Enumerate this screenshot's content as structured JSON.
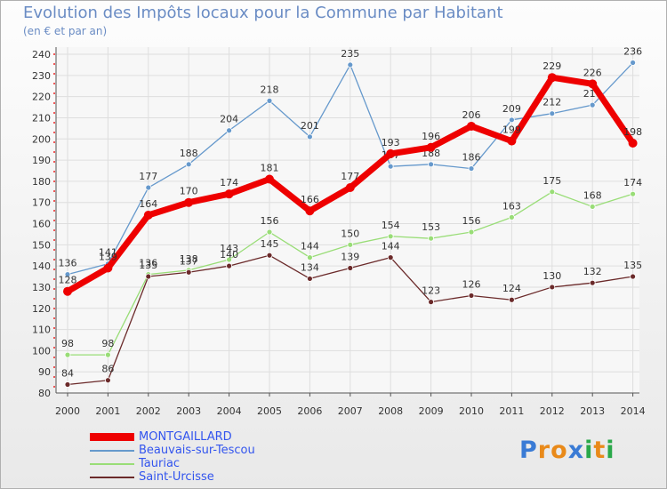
{
  "chart_data": {
    "type": "line",
    "title": "Evolution des Impôts locaux pour la Commune par Habitant",
    "subtitle": "(en € et par an)",
    "categories": [
      "2000",
      "2001",
      "2002",
      "2003",
      "2004",
      "2005",
      "2006",
      "2007",
      "2008",
      "2009",
      "2010",
      "2011",
      "2012",
      "2013",
      "2014"
    ],
    "ylim": [
      80,
      240
    ],
    "yticks": [
      80,
      90,
      100,
      110,
      120,
      130,
      140,
      150,
      160,
      170,
      180,
      190,
      200,
      210,
      220,
      230,
      240
    ],
    "grid": true,
    "series": [
      {
        "name": "Beauvais-sur-Tescou",
        "color": "#6699cc",
        "values": [
          136,
          141,
          177,
          188,
          204,
          218,
          201,
          235,
          187,
          188,
          186,
          209,
          212,
          216,
          236
        ]
      },
      {
        "name": "Tauriac",
        "color": "#99dd77",
        "values": [
          98,
          98,
          136,
          138,
          143,
          156,
          144,
          150,
          154,
          153,
          156,
          163,
          175,
          168,
          174
        ]
      },
      {
        "name": "Saint-Urcisse",
        "color": "#6b2a2a",
        "values": [
          84,
          86,
          135,
          137,
          140,
          145,
          134,
          139,
          144,
          123,
          126,
          124,
          130,
          132,
          135
        ]
      },
      {
        "name": "MONTGAILLARD",
        "color": "#ee0000",
        "values": [
          128,
          139,
          164,
          170,
          174,
          181,
          166,
          177,
          193,
          196,
          206,
          199,
          229,
          226,
          198
        ]
      }
    ],
    "legend": [
      {
        "name": "MONTGAILLARD",
        "color": "#ee0000",
        "text_color": "#3355ee"
      },
      {
        "name": "Beauvais-sur-Tescou",
        "color": "#6699cc",
        "text_color": "#3355ee"
      },
      {
        "name": "Tauriac",
        "color": "#99dd77",
        "text_color": "#3355ee"
      },
      {
        "name": "Saint-Urcisse",
        "color": "#6b2a2a",
        "text_color": "#3355ee"
      }
    ]
  },
  "logo": {
    "letters": [
      "P",
      "r",
      "o",
      "x",
      "i",
      "t",
      "i"
    ],
    "colors": [
      "#3a7bd5",
      "#e98a1a",
      "#e98a1a",
      "#3a7bd5",
      "#2aa84a",
      "#e98a1a",
      "#2aa84a"
    ]
  }
}
